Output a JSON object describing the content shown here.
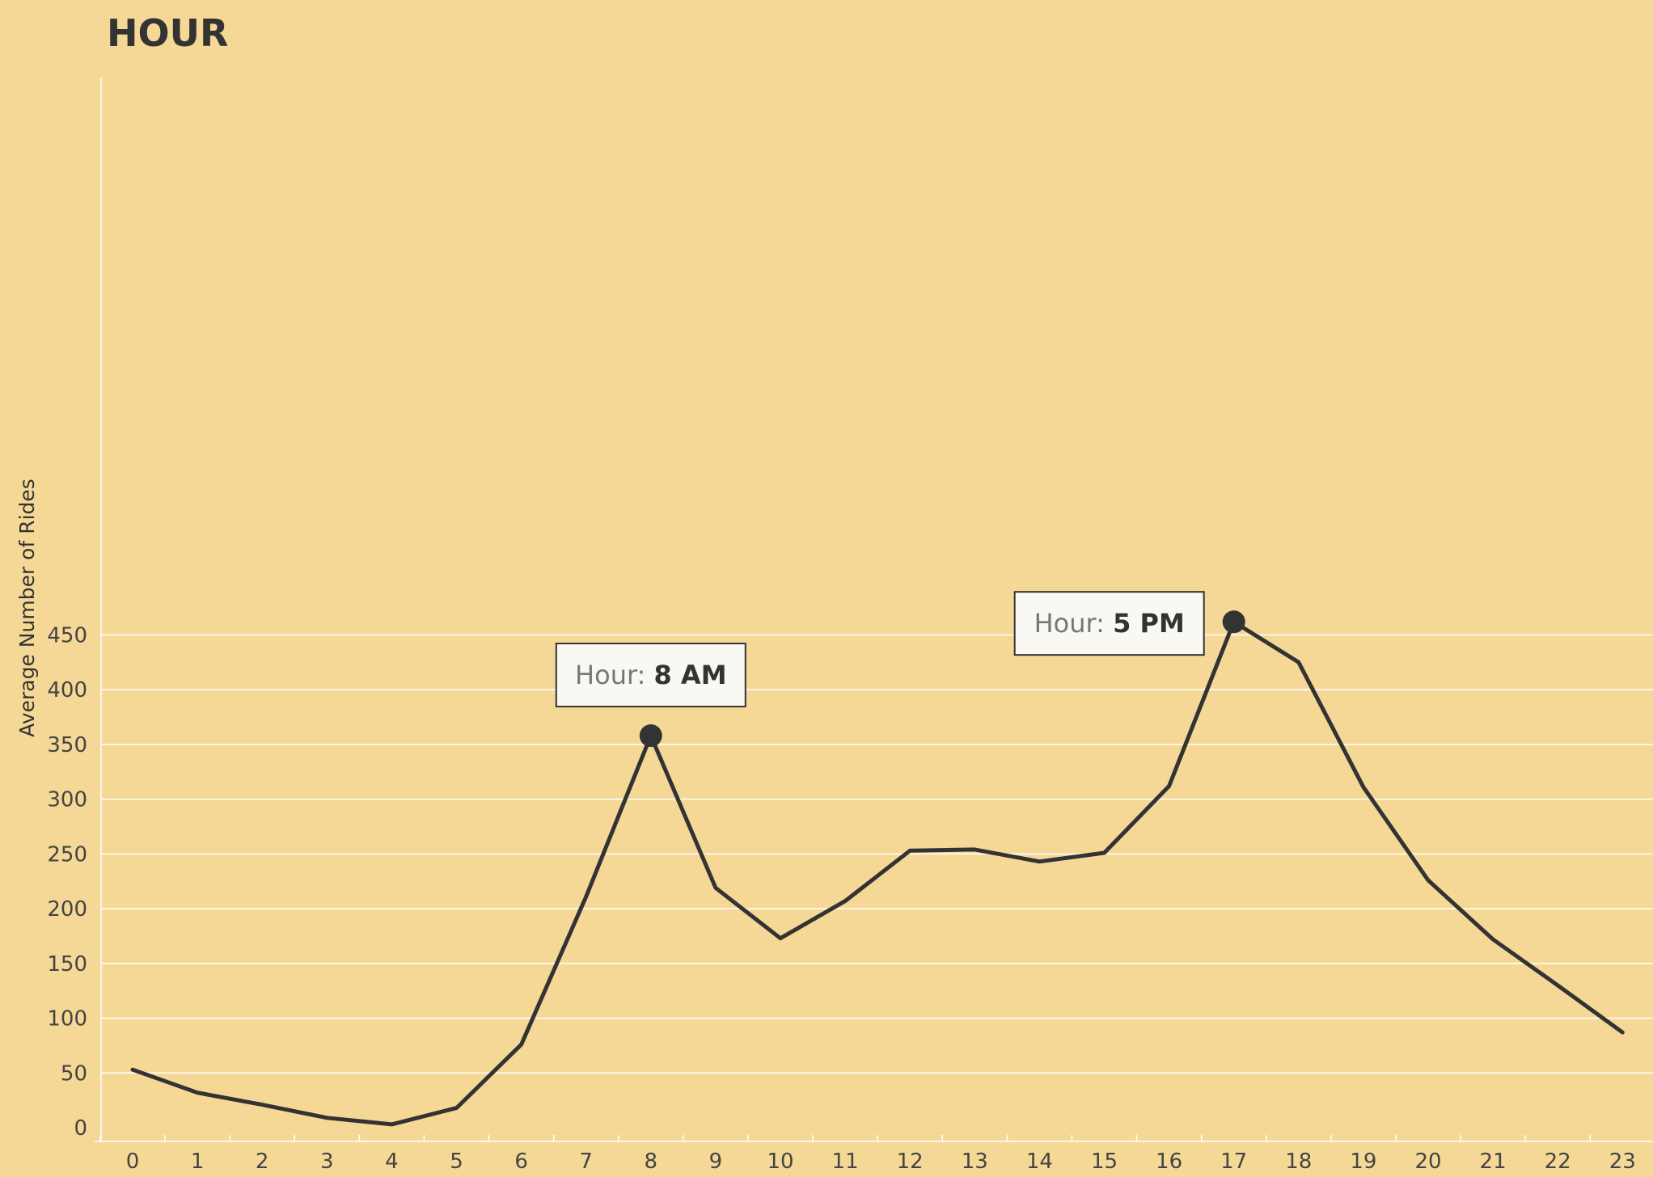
{
  "chart_data": {
    "type": "line",
    "title": "HOUR",
    "xlabel": "",
    "ylabel": "Average Number of Rides",
    "x": [
      0,
      1,
      2,
      3,
      4,
      5,
      6,
      7,
      8,
      9,
      10,
      11,
      12,
      13,
      14,
      15,
      16,
      17,
      18,
      19,
      20,
      21,
      22,
      23
    ],
    "series": [
      {
        "values": [
          53,
          32,
          21,
          9,
          3,
          18,
          76,
          211,
          358,
          219,
          173,
          207,
          253,
          254,
          243,
          251,
          312,
          462,
          425,
          311,
          226,
          172,
          130,
          87
        ]
      }
    ],
    "ylim": [
      0,
      480
    ],
    "yticks": [
      0,
      50,
      100,
      150,
      200,
      250,
      300,
      350,
      400,
      450
    ],
    "grid": true,
    "annotations": [
      {
        "x": 8,
        "prefix": "Hour:",
        "label": "8 AM"
      },
      {
        "x": 17,
        "prefix": "Hour:",
        "label": "5 PM"
      }
    ],
    "colors": {
      "background": "#f6d896",
      "line": "#333333",
      "grid": "#ffffff",
      "annotation_fill": "#f9f8f3"
    }
  }
}
